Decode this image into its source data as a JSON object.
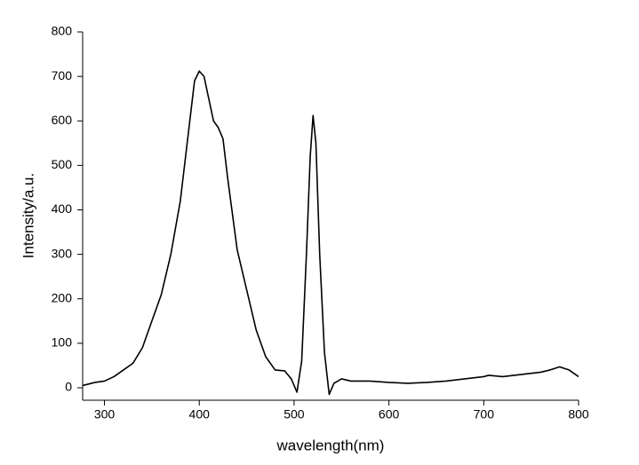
{
  "chart_data": {
    "type": "line",
    "x_label": "wavelength(nm)",
    "y_label": "Intensity/a.u.",
    "xlim": [
      277,
      800
    ],
    "ylim": [
      -28,
      800
    ],
    "xticks": [
      300,
      400,
      500,
      600,
      700,
      800
    ],
    "yticks": [
      0,
      100,
      200,
      300,
      400,
      500,
      600,
      700,
      800
    ],
    "series": [
      {
        "color": "#000000",
        "x": [
          277,
          290,
          300,
          310,
          320,
          330,
          340,
          350,
          360,
          370,
          380,
          390,
          395,
          400,
          405,
          410,
          415,
          420,
          425,
          430,
          440,
          450,
          460,
          470,
          480,
          490,
          497,
          503,
          508,
          513,
          517,
          520,
          523,
          527,
          532,
          537,
          542,
          550,
          560,
          580,
          600,
          620,
          640,
          660,
          680,
          700,
          705,
          720,
          740,
          760,
          770,
          780,
          790,
          800
        ],
        "values": [
          5,
          12,
          15,
          25,
          40,
          55,
          90,
          150,
          210,
          300,
          420,
          600,
          690,
          712,
          700,
          650,
          600,
          585,
          560,
          470,
          310,
          220,
          130,
          70,
          40,
          38,
          20,
          -10,
          60,
          300,
          520,
          612,
          550,
          300,
          80,
          -15,
          10,
          20,
          15,
          15,
          12,
          10,
          12,
          15,
          20,
          25,
          28,
          25,
          30,
          35,
          40,
          47,
          40,
          25
        ]
      }
    ]
  }
}
